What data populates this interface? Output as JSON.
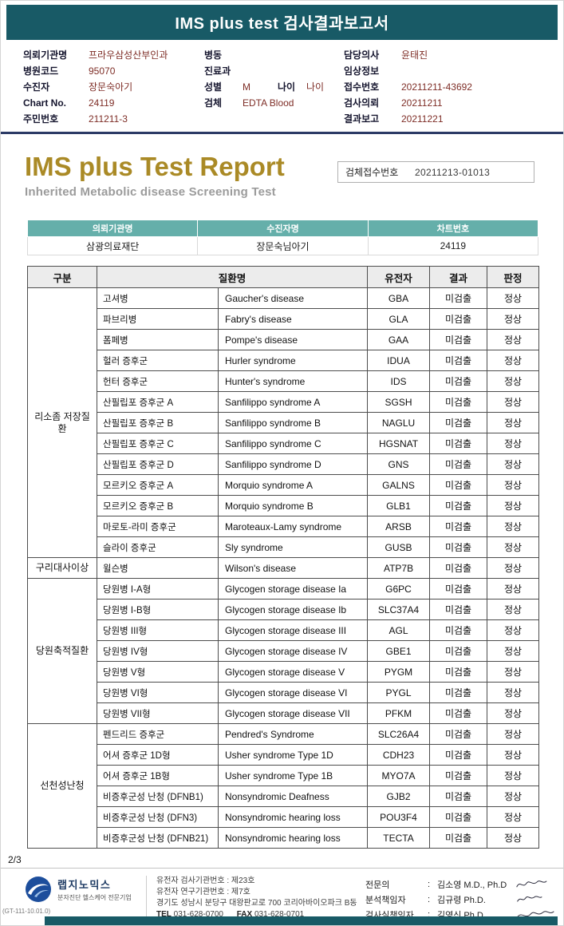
{
  "page": {
    "top_bar_title": "IMS plus test 검사결과보고서",
    "page_number": "2/3",
    "doc_code": "(GT-111-10.01.0)"
  },
  "header_fields": {
    "col1": [
      {
        "label": "의뢰기관명",
        "value": "프라우삼성산부인과"
      },
      {
        "label": "병원코드",
        "value": "95070"
      },
      {
        "label": "수진자",
        "value": "장문숙아기"
      },
      {
        "label": "Chart No.",
        "value": "24119"
      },
      {
        "label": "주민번호",
        "value": "211211-3"
      }
    ],
    "col2": [
      {
        "label": "병동",
        "value": ""
      },
      {
        "label": "진료과",
        "value": ""
      },
      {
        "label": "성별",
        "value": "M",
        "label2": "나이",
        "value2": "나이"
      },
      {
        "label": "검체",
        "value": "EDTA Blood"
      }
    ],
    "col3": [
      {
        "label": "담당의사",
        "value": "윤태진"
      },
      {
        "label": "임상정보",
        "value": ""
      },
      {
        "label": "접수번호",
        "value": "20211211-43692"
      },
      {
        "label": "검사의뢰",
        "value": "20211211"
      },
      {
        "label": "결과보고",
        "value": "20211221"
      }
    ]
  },
  "report_title": {
    "title": "IMS plus Test Report",
    "subtitle": "Inherited Metabolic disease Screening Test",
    "sample_no_label": "검체접수번호",
    "sample_no_value": "20211213-01013"
  },
  "info_table": {
    "headers": [
      "의뢰기관명",
      "수진자명",
      "차트번호"
    ],
    "values": [
      "삼광의료재단",
      "장문숙님아기",
      "24119"
    ]
  },
  "result_table": {
    "headers": {
      "group": "구분",
      "disease": "질환명",
      "gene": "유전자",
      "result": "결과",
      "judgment": "판정"
    },
    "groups": [
      {
        "label": "리소좀 저장질환",
        "rows": [
          {
            "kr": "고셔병",
            "en": "Gaucher's disease",
            "gene": "GBA",
            "result": "미검출",
            "judgment": "정상"
          },
          {
            "kr": "파브리병",
            "en": "Fabry's disease",
            "gene": "GLA",
            "result": "미검출",
            "judgment": "정상"
          },
          {
            "kr": "폼페병",
            "en": "Pompe's disease",
            "gene": "GAA",
            "result": "미검출",
            "judgment": "정상"
          },
          {
            "kr": "헐러 증후군",
            "en": "Hurler syndrome",
            "gene": "IDUA",
            "result": "미검출",
            "judgment": "정상"
          },
          {
            "kr": "헌터 증후군",
            "en": "Hunter's syndrome",
            "gene": "IDS",
            "result": "미검출",
            "judgment": "정상"
          },
          {
            "kr": "산필립포 증후군 A",
            "en": "Sanfilippo syndrome A",
            "gene": "SGSH",
            "result": "미검출",
            "judgment": "정상"
          },
          {
            "kr": "산필립포 증후군 B",
            "en": "Sanfilippo syndrome B",
            "gene": "NAGLU",
            "result": "미검출",
            "judgment": "정상"
          },
          {
            "kr": "산필립포 증후군 C",
            "en": "Sanfilippo syndrome C",
            "gene": "HGSNAT",
            "result": "미검출",
            "judgment": "정상"
          },
          {
            "kr": "산필립포 증후군 D",
            "en": "Sanfilippo syndrome D",
            "gene": "GNS",
            "result": "미검출",
            "judgment": "정상"
          },
          {
            "kr": "모르키오 증후군 A",
            "en": "Morquio syndrome A",
            "gene": "GALNS",
            "result": "미검출",
            "judgment": "정상"
          },
          {
            "kr": "모르키오 증후군 B",
            "en": "Morquio syndrome B",
            "gene": "GLB1",
            "result": "미검출",
            "judgment": "정상"
          },
          {
            "kr": "마로토-라미 증후군",
            "en": "Maroteaux-Lamy syndrome",
            "gene": "ARSB",
            "result": "미검출",
            "judgment": "정상"
          },
          {
            "kr": "슬라이 증후군",
            "en": "Sly syndrome",
            "gene": "GUSB",
            "result": "미검출",
            "judgment": "정상"
          }
        ]
      },
      {
        "label": "구리대사이상",
        "rows": [
          {
            "kr": "윌슨병",
            "en": "Wilson's disease",
            "gene": "ATP7B",
            "result": "미검출",
            "judgment": "정상"
          }
        ]
      },
      {
        "label": "당원축적질환",
        "rows": [
          {
            "kr": "당원병 I-A형",
            "en": "Glycogen storage disease Ia",
            "gene": "G6PC",
            "result": "미검출",
            "judgment": "정상"
          },
          {
            "kr": "당원병 I-B형",
            "en": "Glycogen storage disease Ib",
            "gene": "SLC37A4",
            "result": "미검출",
            "judgment": "정상"
          },
          {
            "kr": "당원병 III형",
            "en": "Glycogen storage disease III",
            "gene": "AGL",
            "result": "미검출",
            "judgment": "정상"
          },
          {
            "kr": "당원병 IV형",
            "en": "Glycogen storage disease IV",
            "gene": "GBE1",
            "result": "미검출",
            "judgment": "정상"
          },
          {
            "kr": "당원병 V형",
            "en": "Glycogen storage disease V",
            "gene": "PYGM",
            "result": "미검출",
            "judgment": "정상"
          },
          {
            "kr": "당원병 VI형",
            "en": "Glycogen storage disease VI",
            "gene": "PYGL",
            "result": "미검출",
            "judgment": "정상"
          },
          {
            "kr": "당원병 VII형",
            "en": "Glycogen storage disease VII",
            "gene": "PFKM",
            "result": "미검출",
            "judgment": "정상"
          }
        ]
      },
      {
        "label": "선천성난청",
        "rows": [
          {
            "kr": "펜드리드 증후군",
            "en": "Pendred's Syndrome",
            "gene": "SLC26A4",
            "result": "미검출",
            "judgment": "정상"
          },
          {
            "kr": "어셔 증후군 1D형",
            "en": "Usher syndrome Type 1D",
            "gene": "CDH23",
            "result": "미검출",
            "judgment": "정상"
          },
          {
            "kr": "어셔 증후군 1B형",
            "en": "Usher syndrome Type 1B",
            "gene": "MYO7A",
            "result": "미검출",
            "judgment": "정상"
          },
          {
            "kr": "비증후군성 난청 (DFNB1)",
            "en": "Nonsyndromic Deafness",
            "gene": "GJB2",
            "result": "미검출",
            "judgment": "정상"
          },
          {
            "kr": "비증후군성 난청 (DFN3)",
            "en": "Nonsyndromic hearing loss",
            "gene": "POU3F4",
            "result": "미검출",
            "judgment": "정상"
          },
          {
            "kr": "비증후군성 난청 (DFNB21)",
            "en": "Nonsyndromic hearing loss",
            "gene": "TECTA",
            "result": "미검출",
            "judgment": "정상"
          }
        ]
      }
    ]
  },
  "footer": {
    "logo_name": "랩지노믹스",
    "logo_tagline": "분자진단 헬스케어 전문기업",
    "cert_lines": [
      "유전자 검사기관번호 : 제23호",
      "유전자 연구기관번호 : 제7호",
      "경기도 성남시 분당구 대왕판교로 700 코리아바이오파크 B동"
    ],
    "tel_label": "TEL",
    "tel": "031-628-0700",
    "fax_label": "FAX",
    "fax": "031-628-0701",
    "signers": [
      {
        "role": "전문의",
        "name": "김소영 M.D., Ph.D"
      },
      {
        "role": "분석책임자",
        "name": "김규령 Ph.D."
      },
      {
        "role": "검사실책임자",
        "name": "김영신 Ph.D."
      }
    ]
  }
}
